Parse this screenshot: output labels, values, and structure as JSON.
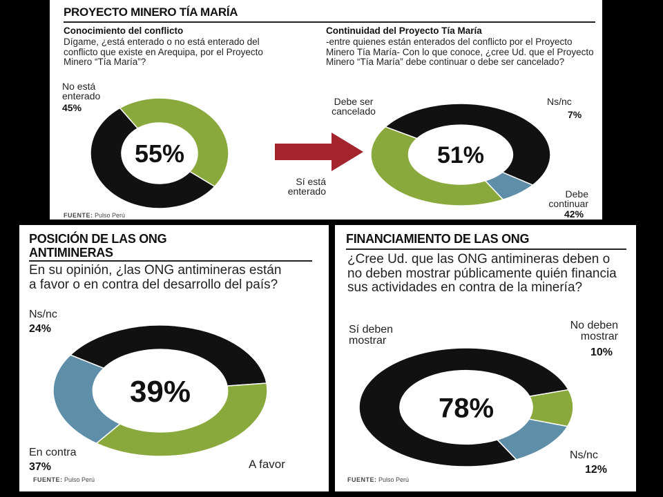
{
  "panels": {
    "top": {
      "title": "PROYECTO MINERO TÍA MARÍA",
      "source_label": "FUENTE:",
      "source_value": "Pulso Perú",
      "left": {
        "subtitle": "Conocimiento del conflicto",
        "question": "Dígame, ¿está enterado o no está enterado del conflicto que existe en Arequipa, por el Proyecto Minero “Tía María”?"
      },
      "right": {
        "subtitle": "Continuidad del Proyecto Tía María",
        "question": "-entre quienes están enterados del conflicto por el Proyecto Minero Tía María- Con lo que conoce, ¿cree Ud. que el Proyecto Minero “Tía María” debe continuar o debe ser cancelado?"
      }
    },
    "bottom_left": {
      "title_line1": "POSICIÓN DE LAS ONG",
      "title_line2": "ANTIMINERAS",
      "question": "En su opinión, ¿las ONG antimineras están a favor o en contra del desarrollo del país?",
      "source_label": "FUENTE:",
      "source_value": "Pulso Perú"
    },
    "bottom_right": {
      "title": "FINANCIAMIENTO DE LAS ONG",
      "question": "¿Cree Ud. que las ONG antimineras deben o no deben mostrar públicamente quién financia sus actividades en contra de la minería?",
      "source_label": "FUENTE:",
      "source_value": "Pulso Perú"
    }
  },
  "colors": {
    "black": "#111111",
    "green": "#8aa93c",
    "blue": "#5f8ea8",
    "arrow": "#a3242d"
  },
  "chart_data": [
    {
      "type": "pie",
      "center_label": "55%",
      "slices": [
        {
          "label": "Sí está enterado",
          "value": 55,
          "color": "black",
          "value_label": ""
        },
        {
          "label": "No está enterado",
          "value": 45,
          "color": "green",
          "value_label": "45%"
        }
      ]
    },
    {
      "type": "pie",
      "center_label": "51%",
      "slices": [
        {
          "label": "Debe ser cancelado",
          "value": 51,
          "color": "black",
          "value_label": ""
        },
        {
          "label": "Ns/nc",
          "value": 7,
          "color": "blue",
          "value_label": "7%"
        },
        {
          "label": "Debe continuar",
          "value": 42,
          "color": "green",
          "value_label": "42%"
        }
      ]
    },
    {
      "type": "pie",
      "center_label": "39%",
      "slices": [
        {
          "label": "A favor",
          "value": 39,
          "color": "black",
          "value_label": ""
        },
        {
          "label": "En contra",
          "value": 37,
          "color": "green",
          "value_label": "37%"
        },
        {
          "label": "Ns/nc",
          "value": 24,
          "color": "blue",
          "value_label": "24%"
        }
      ]
    },
    {
      "type": "pie",
      "center_label": "78%",
      "slices": [
        {
          "label": "Sí deben mostrar",
          "value": 78,
          "color": "black",
          "value_label": ""
        },
        {
          "label": "No deben mostrar",
          "value": 10,
          "color": "green",
          "value_label": "10%"
        },
        {
          "label": "Ns/nc",
          "value": 12,
          "color": "blue",
          "value_label": "12%"
        }
      ]
    }
  ]
}
